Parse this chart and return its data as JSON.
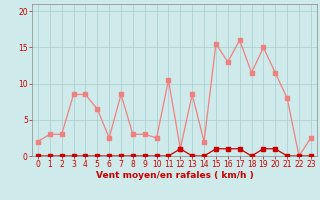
{
  "x": [
    0,
    1,
    2,
    3,
    4,
    5,
    6,
    7,
    8,
    9,
    10,
    11,
    12,
    13,
    14,
    15,
    16,
    17,
    18,
    19,
    20,
    21,
    22,
    23
  ],
  "rafales": [
    2,
    3,
    3,
    8.5,
    8.5,
    6.5,
    2.5,
    8.5,
    3,
    3,
    2.5,
    10.5,
    1,
    8.5,
    2,
    15.5,
    13,
    16,
    11.5,
    15,
    11.5,
    8,
    0,
    2.5
  ],
  "moyen": [
    0,
    0,
    0,
    0,
    0,
    0,
    0,
    0,
    0,
    0,
    0,
    0,
    1,
    0,
    0,
    1,
    1,
    1,
    0,
    1,
    1,
    0,
    0,
    0
  ],
  "color_rafales": "#f08080",
  "color_moyen": "#cc0000",
  "bg_color": "#ceeaea",
  "grid_color": "#aacccc",
  "xlabel": "Vent moyen/en rafales ( km/h )",
  "ylabel_ticks": [
    0,
    5,
    10,
    15,
    20
  ],
  "xtick_labels": [
    "0",
    "1",
    "2",
    "3",
    "4",
    "5",
    "6",
    "7",
    "8",
    "9",
    "10",
    "11",
    "12",
    "13",
    "14",
    "15",
    "16",
    "17",
    "18",
    "19",
    "20",
    "21",
    "22",
    "23"
  ],
  "ylim": [
    0,
    21
  ],
  "xlim": [
    -0.5,
    23.5
  ],
  "xlabel_fontsize": 6.5,
  "tick_fontsize": 5.5,
  "marker_size": 2.5,
  "line_width": 0.9
}
